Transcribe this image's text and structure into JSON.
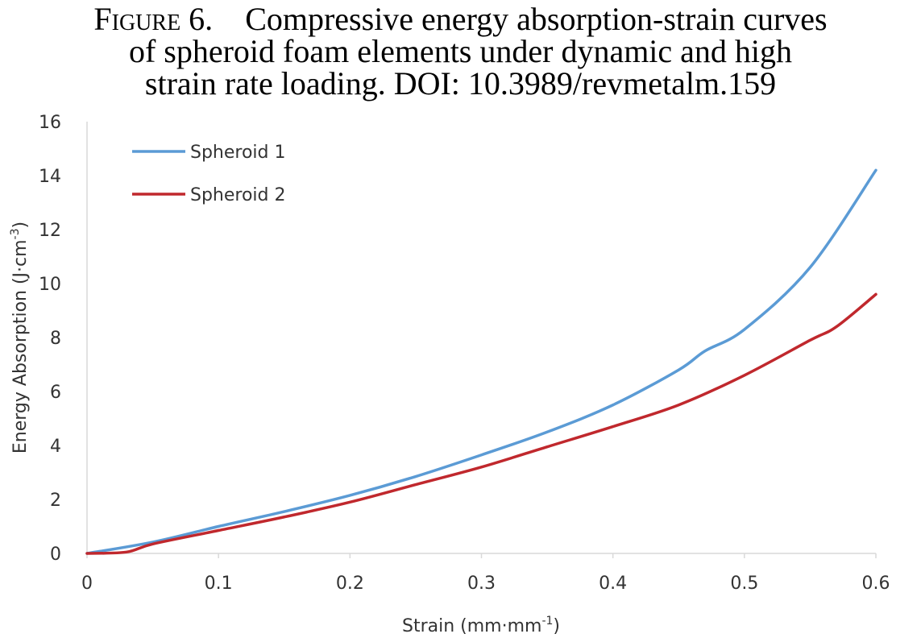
{
  "caption": {
    "label": "Figure 6.",
    "line1_rest": "Compressive energy absorption-strain curves",
    "line2": "of spheroid foam elements under dynamic and high",
    "line3": "strain rate loading. DOI: 10.3989/revmetalm.159"
  },
  "chart_data": {
    "type": "line",
    "xlabel": "Strain (mm·mm",
    "xlabel_sup": "-1",
    "xlabel_end": ")",
    "ylabel": "Energy Absorption (J·cm",
    "ylabel_sup": "-3",
    "ylabel_end": ")",
    "xlim": [
      0,
      0.6
    ],
    "ylim": [
      0,
      16
    ],
    "x_ticks": [
      "0",
      "0.1",
      "0.2",
      "0.3",
      "0.4",
      "0.5",
      "0.6"
    ],
    "y_ticks": [
      "0",
      "2",
      "4",
      "6",
      "8",
      "10",
      "12",
      "14",
      "16"
    ],
    "grid": false,
    "legend_position": "top-left",
    "series": [
      {
        "name": "Spheroid 1",
        "color": "#5B9BD5",
        "points": [
          [
            0,
            0
          ],
          [
            0.05,
            0.42
          ],
          [
            0.1,
            1.0
          ],
          [
            0.15,
            1.55
          ],
          [
            0.2,
            2.15
          ],
          [
            0.25,
            2.85
          ],
          [
            0.3,
            3.65
          ],
          [
            0.35,
            4.5
          ],
          [
            0.4,
            5.5
          ],
          [
            0.45,
            6.8
          ],
          [
            0.47,
            7.5
          ],
          [
            0.5,
            8.3
          ],
          [
            0.55,
            10.6
          ],
          [
            0.6,
            14.2
          ]
        ]
      },
      {
        "name": "Spheroid 2",
        "color": "#C0282D",
        "points": [
          [
            0,
            0
          ],
          [
            0.03,
            0.05
          ],
          [
            0.05,
            0.35
          ],
          [
            0.1,
            0.85
          ],
          [
            0.15,
            1.35
          ],
          [
            0.2,
            1.9
          ],
          [
            0.25,
            2.55
          ],
          [
            0.3,
            3.2
          ],
          [
            0.35,
            3.95
          ],
          [
            0.4,
            4.7
          ],
          [
            0.45,
            5.5
          ],
          [
            0.5,
            6.6
          ],
          [
            0.55,
            7.9
          ],
          [
            0.57,
            8.4
          ],
          [
            0.6,
            9.6
          ]
        ]
      }
    ]
  }
}
